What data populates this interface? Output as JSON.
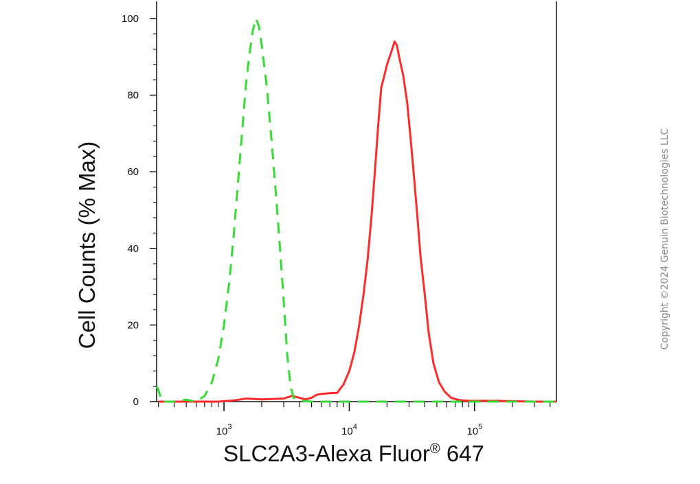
{
  "chart_data": {
    "type": "line",
    "title": "",
    "xlabel_main": "SLC2A3-Alexa Fluor",
    "xlabel_sup": "®",
    "xlabel_tail": " 647",
    "ylabel": "Cell Counts (% Max)",
    "x_scale": "log",
    "xlim": [
      290,
      450000
    ],
    "ylim": [
      0,
      100
    ],
    "y_ticks": [
      0,
      20,
      40,
      60,
      80,
      100
    ],
    "y_tick_labels": [
      "0",
      "20",
      "40",
      "60",
      "80",
      "100"
    ],
    "x_ticks": [
      {
        "value": 1000,
        "base": "10",
        "exp": "3"
      },
      {
        "value": 10000,
        "base": "10",
        "exp": "4"
      },
      {
        "value": 100000,
        "base": "10",
        "exp": "5"
      }
    ],
    "series": [
      {
        "color": "#ff2a2a",
        "style": "solid",
        "points": [
          [
            300,
            0
          ],
          [
            600,
            0
          ],
          [
            900,
            0
          ],
          [
            1200,
            0.3
          ],
          [
            1500,
            0.8
          ],
          [
            2000,
            0.6
          ],
          [
            2500,
            0.7
          ],
          [
            3000,
            0.8
          ],
          [
            3500,
            1.5
          ],
          [
            4000,
            1.0
          ],
          [
            4500,
            0.6
          ],
          [
            5000,
            1.0
          ],
          [
            5500,
            1.8
          ],
          [
            6000,
            2.0
          ],
          [
            7000,
            2.2
          ],
          [
            8000,
            2.3
          ],
          [
            9000,
            4.5
          ],
          [
            10000,
            8
          ],
          [
            11000,
            13
          ],
          [
            12000,
            20
          ],
          [
            13000,
            28
          ],
          [
            14000,
            37
          ],
          [
            15000,
            48
          ],
          [
            16000,
            60
          ],
          [
            17000,
            72
          ],
          [
            18000,
            82
          ],
          [
            19000,
            85
          ],
          [
            20000,
            88
          ],
          [
            21000,
            90
          ],
          [
            22000,
            92
          ],
          [
            23000,
            94
          ],
          [
            24000,
            93
          ],
          [
            25000,
            90
          ],
          [
            27000,
            85
          ],
          [
            29000,
            78
          ],
          [
            31000,
            68
          ],
          [
            33000,
            58
          ],
          [
            35000,
            48
          ],
          [
            37000,
            38
          ],
          [
            40000,
            28
          ],
          [
            43000,
            18
          ],
          [
            47000,
            10
          ],
          [
            52000,
            5
          ],
          [
            58000,
            2.5
          ],
          [
            65000,
            1.0
          ],
          [
            75000,
            0.4
          ],
          [
            90000,
            0.2
          ],
          [
            150000,
            0.2
          ],
          [
            300000,
            0
          ],
          [
            450000,
            0
          ]
        ]
      },
      {
        "color": "#33dd33",
        "style": "dashed",
        "points": [
          [
            290,
            4
          ],
          [
            300,
            3
          ],
          [
            320,
            0
          ],
          [
            400,
            0
          ],
          [
            500,
            0.5
          ],
          [
            600,
            0
          ],
          [
            700,
            1.5
          ],
          [
            800,
            5
          ],
          [
            900,
            11
          ],
          [
            1000,
            20
          ],
          [
            1100,
            31
          ],
          [
            1200,
            44
          ],
          [
            1300,
            58
          ],
          [
            1400,
            71
          ],
          [
            1500,
            83
          ],
          [
            1600,
            91
          ],
          [
            1700,
            97
          ],
          [
            1800,
            100
          ],
          [
            1900,
            98
          ],
          [
            2000,
            93
          ],
          [
            2200,
            82
          ],
          [
            2400,
            68
          ],
          [
            2600,
            54
          ],
          [
            2800,
            40
          ],
          [
            3000,
            26
          ],
          [
            3200,
            12
          ],
          [
            3400,
            4
          ],
          [
            3600,
            1
          ],
          [
            4000,
            0.3
          ],
          [
            5000,
            0
          ],
          [
            10000,
            0
          ],
          [
            30000,
            0
          ],
          [
            100000,
            0
          ],
          [
            450000,
            0
          ]
        ]
      }
    ]
  },
  "copyright": "Copyright ©2024 Genuin Biotechnologies LLC"
}
